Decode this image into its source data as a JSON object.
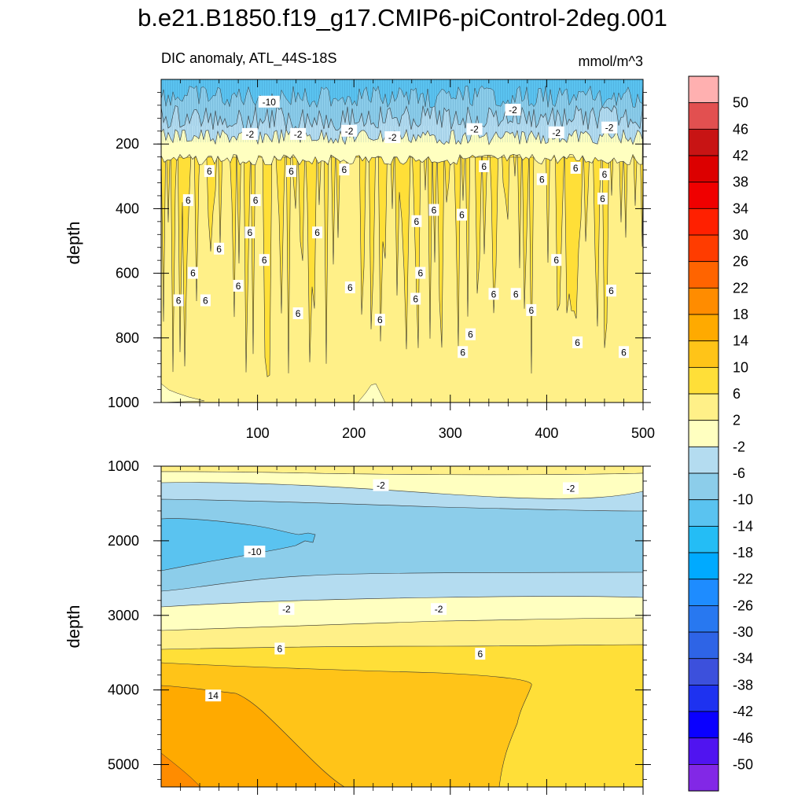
{
  "title": "b.e21.B1850.f19_g17.CMIP6-piControl-2deg.001",
  "subtitle_left": "DIC anomaly, ATL_44S-18S",
  "subtitle_right": "mmol/m^3",
  "colorbar": {
    "labels": [
      "50",
      "46",
      "42",
      "38",
      "34",
      "30",
      "26",
      "22",
      "18",
      "14",
      "10",
      "6",
      "2",
      "-2",
      "-6",
      "-10",
      "-14",
      "-18",
      "-22",
      "-26",
      "-30",
      "-34",
      "-38",
      "-42",
      "-46",
      "-50"
    ],
    "colors": [
      "#ffb0b0",
      "#e25050",
      "#c81414",
      "#dc0000",
      "#f00000",
      "#ff2000",
      "#ff3c00",
      "#ff6400",
      "#ff8c00",
      "#ffaa00",
      "#ffc418",
      "#ffdf38",
      "#fff088",
      "#ffffc0",
      "#b4dcf0",
      "#8ccdea",
      "#5ac3f0",
      "#24bdf5",
      "#00aaff",
      "#1e8cff",
      "#2878f0",
      "#2e64e6",
      "#3c50dc",
      "#1e32f0",
      "#0a00ff",
      "#5014f0",
      "#8228e6"
    ]
  },
  "chart_data": [
    {
      "type": "heatmap",
      "panel": "upper",
      "title": "DIC anomaly, ATL_44S-18S",
      "units": "mmol/m^3",
      "xlabel": "",
      "ylabel": "depth",
      "xlim": [
        0,
        500
      ],
      "ylim": [
        1000,
        0
      ],
      "xticks": [
        "100",
        "200",
        "300",
        "400",
        "500"
      ],
      "yticks": [
        "200",
        "400",
        "600",
        "800",
        "1000"
      ],
      "contour_levels": [
        -10,
        -6,
        -2,
        2,
        6,
        10
      ],
      "contour_labels": [
        {
          "x": 112,
          "y": 70,
          "text": "-10"
        },
        {
          "x": 92,
          "y": 170,
          "text": "-2"
        },
        {
          "x": 142,
          "y": 170,
          "text": "-2"
        },
        {
          "x": 195,
          "y": 160,
          "text": "-2"
        },
        {
          "x": 240,
          "y": 180,
          "text": "-2"
        },
        {
          "x": 325,
          "y": 155,
          "text": "-2"
        },
        {
          "x": 365,
          "y": 95,
          "text": "-2"
        },
        {
          "x": 410,
          "y": 165,
          "text": "-2"
        },
        {
          "x": 465,
          "y": 150,
          "text": "-2"
        },
        {
          "x": 50,
          "y": 285,
          "text": "6"
        },
        {
          "x": 135,
          "y": 285,
          "text": "6"
        },
        {
          "x": 190,
          "y": 280,
          "text": "6"
        },
        {
          "x": 335,
          "y": 270,
          "text": "6"
        },
        {
          "x": 395,
          "y": 310,
          "text": "6"
        },
        {
          "x": 430,
          "y": 275,
          "text": "6"
        },
        {
          "x": 460,
          "y": 295,
          "text": "6"
        },
        {
          "x": 28,
          "y": 375,
          "text": "6"
        },
        {
          "x": 98,
          "y": 375,
          "text": "6"
        },
        {
          "x": 283,
          "y": 405,
          "text": "6"
        },
        {
          "x": 312,
          "y": 420,
          "text": "6"
        },
        {
          "x": 458,
          "y": 370,
          "text": "6"
        },
        {
          "x": 92,
          "y": 475,
          "text": "6"
        },
        {
          "x": 162,
          "y": 475,
          "text": "6"
        },
        {
          "x": 265,
          "y": 440,
          "text": "6"
        },
        {
          "x": 60,
          "y": 525,
          "text": "6"
        },
        {
          "x": 107,
          "y": 560,
          "text": "6"
        },
        {
          "x": 410,
          "y": 560,
          "text": "6"
        },
        {
          "x": 33,
          "y": 600,
          "text": "6"
        },
        {
          "x": 269,
          "y": 600,
          "text": "6"
        },
        {
          "x": 80,
          "y": 640,
          "text": "6"
        },
        {
          "x": 196,
          "y": 645,
          "text": "6"
        },
        {
          "x": 345,
          "y": 665,
          "text": "6"
        },
        {
          "x": 368,
          "y": 665,
          "text": "6"
        },
        {
          "x": 467,
          "y": 655,
          "text": "6"
        },
        {
          "x": 18,
          "y": 685,
          "text": "6"
        },
        {
          "x": 46,
          "y": 685,
          "text": "6"
        },
        {
          "x": 264,
          "y": 680,
          "text": "6"
        },
        {
          "x": 384,
          "y": 715,
          "text": "6"
        },
        {
          "x": 142,
          "y": 725,
          "text": "6"
        },
        {
          "x": 227,
          "y": 745,
          "text": "6"
        },
        {
          "x": 321,
          "y": 790,
          "text": "6"
        },
        {
          "x": 432,
          "y": 815,
          "text": "6"
        },
        {
          "x": 313,
          "y": 845,
          "text": "6"
        },
        {
          "x": 480,
          "y": 845,
          "text": "6"
        }
      ]
    },
    {
      "type": "heatmap",
      "panel": "lower",
      "title": "",
      "xlabel": "",
      "ylabel": "depth",
      "xlim": [
        0,
        500
      ],
      "ylim": [
        5300,
        1000
      ],
      "yticks": [
        "1000",
        "2000",
        "3000",
        "4000",
        "5000"
      ],
      "contour_levels": [
        -10,
        -6,
        -2,
        2,
        6,
        10,
        14
      ],
      "contour_labels": [
        {
          "x": 228,
          "y": 1260,
          "text": "-2"
        },
        {
          "x": 425,
          "y": 1300,
          "text": "-2"
        },
        {
          "x": 97,
          "y": 2150,
          "text": "-10"
        },
        {
          "x": 130,
          "y": 2920,
          "text": "-2"
        },
        {
          "x": 288,
          "y": 2920,
          "text": "-2"
        },
        {
          "x": 123,
          "y": 3450,
          "text": "6"
        },
        {
          "x": 331,
          "y": 3520,
          "text": "6"
        },
        {
          "x": 54,
          "y": 4080,
          "text": "14"
        }
      ]
    }
  ]
}
